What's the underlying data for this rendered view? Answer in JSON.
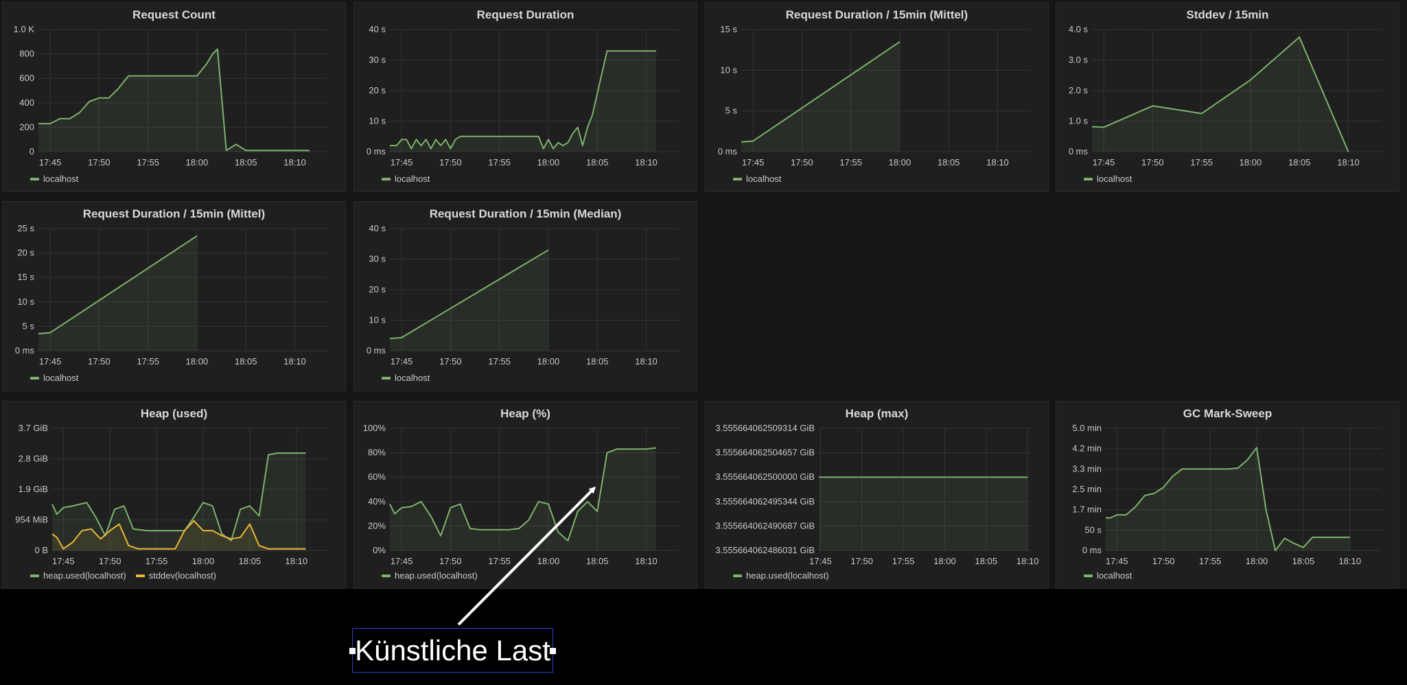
{
  "panels": [
    {
      "title": "Request Count",
      "legend": [
        {
          "name": "localhost",
          "color": "#7eb26d"
        }
      ],
      "chart_data": {
        "type": "area",
        "title": "Request Count",
        "y_ticks": [
          "0",
          "200",
          "400",
          "600",
          "800",
          "1.0 K"
        ],
        "ylim": [
          0,
          1000
        ],
        "x_ticks": [
          "17:45",
          "17:50",
          "17:55",
          "18:00",
          "18:05",
          "18:10"
        ],
        "x_tick_minutes": [
          45,
          50,
          55,
          60,
          65,
          70
        ],
        "xlim_minutes": [
          43.8,
          73.4
        ],
        "series": [
          {
            "name": "localhost",
            "color": "#7eb26d",
            "x": [
              43.8,
              45,
              46,
              47,
              48,
              49,
              50,
              51,
              52,
              53,
              54,
              55,
              56,
              57,
              58,
              59,
              60,
              61,
              61.6,
              62.1,
              63,
              64,
              65,
              67,
              71.5
            ],
            "y": [
              230,
              230,
              270,
              270,
              320,
              410,
              440,
              440,
              520,
              620,
              620,
              620,
              620,
              620,
              620,
              620,
              620,
              720,
              800,
              840,
              10,
              60,
              10,
              10,
              10
            ]
          }
        ]
      }
    },
    {
      "title": "Request Duration",
      "legend": [
        {
          "name": "localhost",
          "color": "#7eb26d"
        }
      ],
      "chart_data": {
        "type": "area",
        "title": "Request Duration",
        "y_ticks": [
          "0 ms",
          "10 s",
          "20 s",
          "30 s",
          "40 s"
        ],
        "ylim": [
          0,
          40
        ],
        "x_ticks": [
          "17:45",
          "17:50",
          "17:55",
          "18:00",
          "18:05",
          "18:10"
        ],
        "x_tick_minutes": [
          45,
          50,
          55,
          60,
          65,
          70
        ],
        "xlim_minutes": [
          43.8,
          73.4
        ],
        "series": [
          {
            "name": "localhost",
            "color": "#7eb26d",
            "x": [
              43.8,
              44.5,
              45,
              45.5,
              46,
              46.5,
              47,
              47.5,
              48,
              48.5,
              49,
              49.5,
              50,
              50.5,
              51,
              52,
              53,
              54,
              55,
              56,
              57,
              58,
              59,
              59.5,
              60,
              60.5,
              61,
              61.5,
              62,
              62.5,
              63,
              63.5,
              64,
              64.5,
              65,
              66,
              67,
              68,
              69,
              70,
              71
            ],
            "y": [
              2,
              2,
              4,
              4,
              1,
              4,
              2,
              4,
              1,
              4,
              2,
              4,
              1,
              4,
              5,
              5,
              5,
              5,
              5,
              5,
              5,
              5,
              5,
              1,
              4,
              1,
              3,
              2,
              3,
              6,
              8,
              2,
              8,
              12,
              19,
              33,
              33,
              33,
              33,
              33,
              33
            ]
          }
        ]
      }
    },
    {
      "title": "Request Duration / 15min (Mittel)",
      "legend": [
        {
          "name": "localhost",
          "color": "#7eb26d"
        }
      ],
      "chart_data": {
        "type": "area",
        "title": "Request Duration / 15min (Mittel)",
        "y_ticks": [
          "0 ms",
          "5 s",
          "10 s",
          "15 s"
        ],
        "ylim": [
          0,
          15
        ],
        "x_ticks": [
          "17:45",
          "17:50",
          "17:55",
          "18:00",
          "18:05",
          "18:10"
        ],
        "x_tick_minutes": [
          45,
          50,
          55,
          60,
          65,
          70
        ],
        "xlim_minutes": [
          43.8,
          73.4
        ],
        "series": [
          {
            "name": "localhost",
            "color": "#7eb26d",
            "x": [
              43.8,
              45,
              60
            ],
            "y": [
              1.2,
              1.3,
              13.5
            ]
          }
        ]
      }
    },
    {
      "title": "Stddev / 15min",
      "legend": [
        {
          "name": "localhost",
          "color": "#7eb26d"
        }
      ],
      "chart_data": {
        "type": "area",
        "title": "Stddev / 15min",
        "y_ticks": [
          "0 ms",
          "1.0 s",
          "2.0 s",
          "3.0 s",
          "4.0 s"
        ],
        "ylim": [
          0,
          4
        ],
        "x_ticks": [
          "17:45",
          "17:50",
          "17:55",
          "18:00",
          "18:05",
          "18:10"
        ],
        "x_tick_minutes": [
          45,
          50,
          55,
          60,
          65,
          70
        ],
        "xlim_minutes": [
          43.8,
          73.4
        ],
        "series": [
          {
            "name": "localhost",
            "color": "#7eb26d",
            "x": [
              43.8,
              45,
              50,
              55,
              60,
              65,
              70
            ],
            "y": [
              0.82,
              0.8,
              1.5,
              1.25,
              2.35,
              3.75,
              0
            ]
          }
        ]
      }
    },
    {
      "title": "Request Duration / 15min (Mittel)",
      "legend": [
        {
          "name": "localhost",
          "color": "#7eb26d"
        }
      ],
      "chart_data": {
        "type": "area",
        "title": "Request Duration / 15min (Mittel)",
        "y_ticks": [
          "0 ms",
          "5 s",
          "10 s",
          "15 s",
          "20 s",
          "25 s"
        ],
        "ylim": [
          0,
          25
        ],
        "x_ticks": [
          "17:45",
          "17:50",
          "17:55",
          "18:00",
          "18:05",
          "18:10"
        ],
        "x_tick_minutes": [
          45,
          50,
          55,
          60,
          65,
          70
        ],
        "xlim_minutes": [
          43.8,
          73.4
        ],
        "series": [
          {
            "name": "localhost",
            "color": "#7eb26d",
            "x": [
              43.8,
              45,
              60
            ],
            "y": [
              3.5,
              3.7,
              23.5
            ]
          }
        ]
      }
    },
    {
      "title": "Request Duration / 15min (Median)",
      "legend": [
        {
          "name": "localhost",
          "color": "#7eb26d"
        }
      ],
      "chart_data": {
        "type": "area",
        "title": "Request Duration / 15min (Median)",
        "y_ticks": [
          "0 ms",
          "10 s",
          "20 s",
          "30 s",
          "40 s"
        ],
        "ylim": [
          0,
          40
        ],
        "x_ticks": [
          "17:45",
          "17:50",
          "17:55",
          "18:00",
          "18:05",
          "18:10"
        ],
        "x_tick_minutes": [
          45,
          50,
          55,
          60,
          65,
          70
        ],
        "xlim_minutes": [
          43.8,
          73.4
        ],
        "series": [
          {
            "name": "localhost",
            "color": "#7eb26d",
            "x": [
              43.8,
              45,
              60
            ],
            "y": [
              4,
              4.3,
              33
            ]
          }
        ]
      }
    },
    {
      "title": "Heap (used)",
      "legend": [
        {
          "name": "heap.used(localhost)",
          "color": "#7eb26d"
        },
        {
          "name": "stddev(localhost)",
          "color": "#eab839"
        }
      ],
      "chart_data": {
        "type": "area",
        "title": "Heap (used)",
        "y_ticks": [
          "0 B",
          "954 MiB",
          "1.9 GiB",
          "2.8 GiB",
          "3.7 GiB"
        ],
        "ylim": [
          0,
          3.7
        ],
        "x_ticks": [
          "17:45",
          "17:50",
          "17:55",
          "18:00",
          "18:05",
          "18:10"
        ],
        "x_tick_minutes": [
          45,
          50,
          55,
          60,
          65,
          70
        ],
        "xlim_minutes": [
          43.8,
          73.4
        ],
        "series": [
          {
            "name": "heap.used(localhost)",
            "color": "#7eb26d",
            "x": [
              43.8,
              44.3,
              45,
              46,
              47.5,
              48.5,
              49.5,
              50.5,
              51.5,
              52.5,
              54,
              55,
              56,
              57,
              58,
              59,
              60,
              61,
              62,
              63,
              64,
              65,
              66,
              67,
              68,
              69,
              70,
              71
            ],
            "y": [
              1.4,
              1.1,
              1.3,
              1.35,
              1.45,
              1.0,
              0.45,
              1.25,
              1.35,
              0.65,
              0.6,
              0.6,
              0.6,
              0.6,
              0.6,
              1.0,
              1.45,
              1.35,
              0.5,
              0.3,
              1.25,
              1.35,
              1.05,
              2.9,
              2.95,
              2.95,
              2.95,
              2.95
            ]
          },
          {
            "name": "stddev(localhost)",
            "color": "#eab839",
            "x": [
              43.8,
              44.3,
              45,
              46,
              47,
              48,
              49,
              50,
              51,
              52,
              53,
              54,
              55,
              56,
              57,
              58,
              59,
              60,
              61,
              62,
              63,
              64,
              65,
              66,
              67,
              68,
              69,
              70,
              71
            ],
            "y": [
              0.5,
              0.4,
              0.05,
              0.25,
              0.6,
              0.65,
              0.35,
              0.6,
              0.8,
              0.15,
              0.05,
              0.05,
              0.05,
              0.05,
              0.05,
              0.6,
              0.9,
              0.6,
              0.6,
              0.45,
              0.35,
              0.4,
              0.8,
              0.15,
              0.05,
              0.05,
              0.05,
              0.05,
              0.05
            ]
          }
        ]
      }
    },
    {
      "title": "Heap (%)",
      "legend": [
        {
          "name": "heap.used(localhost)",
          "color": "#7eb26d"
        }
      ],
      "chart_data": {
        "type": "area",
        "title": "Heap (%)",
        "y_ticks": [
          "0%",
          "20%",
          "40%",
          "60%",
          "80%",
          "100%"
        ],
        "ylim": [
          0,
          100
        ],
        "x_ticks": [
          "17:45",
          "17:50",
          "17:55",
          "18:00",
          "18:05",
          "18:10"
        ],
        "x_tick_minutes": [
          45,
          50,
          55,
          60,
          65,
          70
        ],
        "xlim_minutes": [
          43.8,
          73.4
        ],
        "series": [
          {
            "name": "heap.used(localhost)",
            "color": "#7eb26d",
            "x": [
              43.8,
              44.3,
              45,
              46,
              47,
              48,
              49,
              50,
              51,
              52,
              53,
              54,
              55,
              56,
              57,
              58,
              59,
              60,
              61,
              62,
              63,
              64,
              65,
              66,
              67,
              68,
              69,
              70,
              71
            ],
            "y": [
              38,
              30,
              35,
              36,
              40,
              28,
              12,
              35,
              38,
              18,
              17,
              17,
              17,
              17,
              18,
              25,
              40,
              38,
              15,
              8,
              32,
              40,
              32,
              80,
              83,
              83,
              83,
              83,
              84
            ]
          }
        ]
      }
    },
    {
      "title": "Heap (max)",
      "legend": [
        {
          "name": "heap.used(localhost)",
          "color": "#7eb26d"
        }
      ],
      "chart_data": {
        "type": "area",
        "title": "Heap (max)",
        "y_ticks": [
          "3.555664062486031 GiB",
          "3.555664062490687 GiB",
          "3.555664062495344 GiB",
          "3.555664062500000 GiB",
          "3.555664062504657 GiB",
          "3.555664062509314 GiB"
        ],
        "ylim": [
          0,
          5
        ],
        "x_ticks": [
          "17:45",
          "17:50",
          "17:55",
          "18:00",
          "18:05",
          "18:10"
        ],
        "x_tick_minutes": [
          45,
          50,
          55,
          60,
          65,
          70
        ],
        "xlim_minutes": [
          44.8,
          70.4
        ],
        "series": [
          {
            "name": "heap.used(localhost)",
            "color": "#7eb26d",
            "x": [
              44.8,
              70
            ],
            "y": [
              3,
              3
            ]
          }
        ]
      }
    },
    {
      "title": "GC Mark-Sweep",
      "legend": [
        {
          "name": "localhost",
          "color": "#7eb26d"
        }
      ],
      "chart_data": {
        "type": "area",
        "title": "GC Mark-Sweep",
        "y_ticks": [
          "0 ms",
          "50 s",
          "1.7 min",
          "2.5 min",
          "3.3 min",
          "4.2 min",
          "5.0 min"
        ],
        "ylim": [
          0,
          6
        ],
        "x_ticks": [
          "17:45",
          "17:50",
          "17:55",
          "18:00",
          "18:05",
          "18:10"
        ],
        "x_tick_minutes": [
          45,
          50,
          55,
          60,
          65,
          70
        ],
        "xlim_minutes": [
          43.8,
          73.4
        ],
        "series": [
          {
            "name": "localhost",
            "color": "#7eb26d",
            "x": [
              43.8,
              44.3,
              45,
              46,
              47,
              48,
              49,
              50,
              51,
              52,
              53,
              54,
              55,
              56,
              57,
              58,
              59,
              60,
              61,
              62,
              63,
              64,
              65,
              66,
              67,
              68,
              69,
              70
            ],
            "y": [
              1.6,
              1.6,
              1.75,
              1.75,
              2.15,
              2.7,
              2.8,
              3.1,
              3.65,
              4.0,
              4.0,
              4.0,
              4.0,
              4.0,
              4.0,
              4.05,
              4.45,
              5.05,
              2.0,
              0,
              0.6,
              0.35,
              0.15,
              0.65,
              0.65,
              0.65,
              0.65,
              0.65
            ]
          }
        ]
      }
    }
  ],
  "annotation": {
    "label": "Künstliche Last",
    "color": "#2f3fd0"
  }
}
